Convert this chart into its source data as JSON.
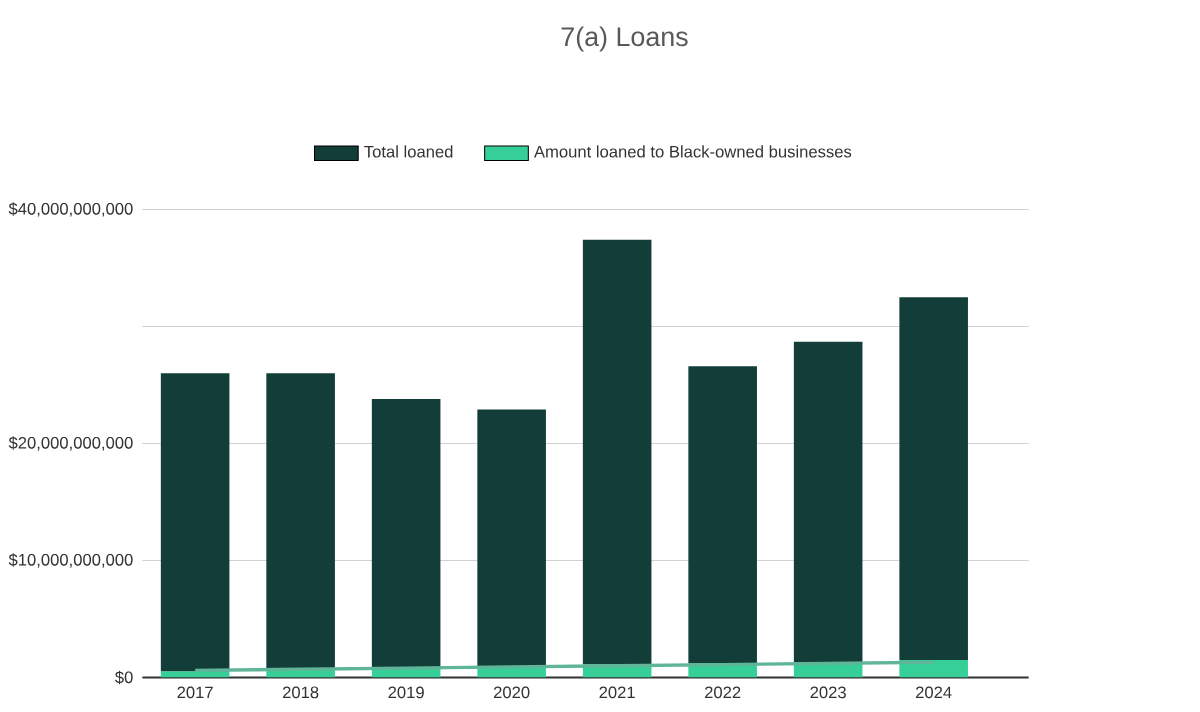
{
  "chart_data": {
    "type": "bar",
    "title": "7(a) Loans",
    "categories": [
      "2017",
      "2018",
      "2019",
      "2020",
      "2021",
      "2022",
      "2023",
      "2024"
    ],
    "stacked": true,
    "legend": "top",
    "grid": "y",
    "ylim": [
      0,
      40000000000
    ],
    "yticks": [
      {
        "value": 0,
        "label": "$0"
      },
      {
        "value": 10000000000,
        "label": "$10,000,000,000"
      },
      {
        "value": 20000000000,
        "label": "$20,000,000,000"
      },
      {
        "value": 30000000000,
        "label": null
      },
      {
        "value": 40000000000,
        "label": "$40,000,000,000"
      }
    ],
    "series": [
      {
        "name": "Amount loaned to Black-owned businesses",
        "color": "#36cf98",
        "values": [
          500000000,
          700000000,
          800000000,
          900000000,
          1100000000,
          1200000000,
          1300000000,
          1500000000
        ]
      },
      {
        "name": "Total loaned",
        "color": "#123d38",
        "values": [
          25500000000,
          25300000000,
          23000000000,
          22000000000,
          36300000000,
          25400000000,
          27400000000,
          31000000000
        ]
      },
      {
        "type": "line",
        "color": "#5fb597",
        "values": [
          600000000,
          700000000,
          800000000,
          900000000,
          1000000000,
          1100000000,
          1200000000,
          1300000000
        ]
      }
    ]
  }
}
